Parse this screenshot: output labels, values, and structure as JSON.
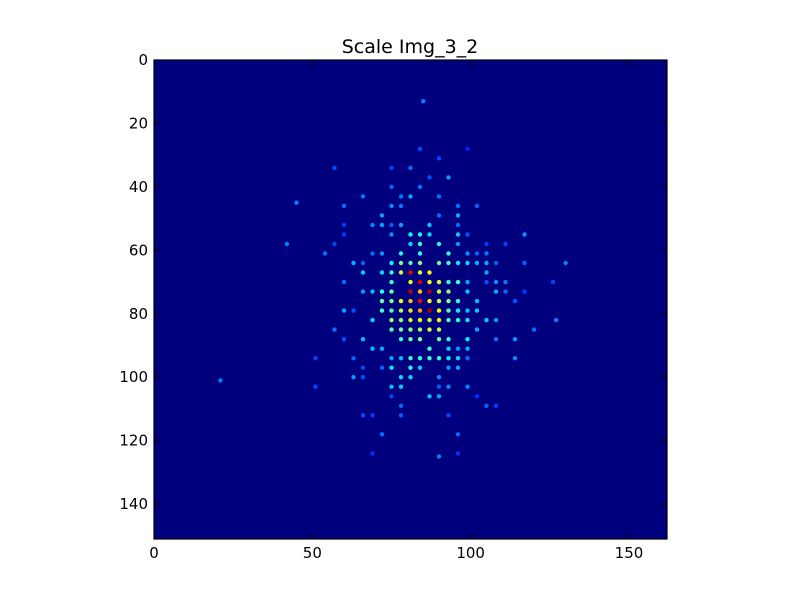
{
  "chart_data": {
    "type": "heatmap",
    "title": "Scale Img_3_2",
    "xlabel": "",
    "ylabel": "",
    "xlim": [
      0,
      162
    ],
    "ylim": [
      151,
      0
    ],
    "x_ticks": [
      0,
      50,
      100,
      150
    ],
    "y_ticks": [
      0,
      20,
      40,
      60,
      80,
      100,
      120,
      140
    ],
    "x_tick_labels": [
      "0",
      "50",
      "100",
      "150"
    ],
    "y_tick_labels": [
      "0",
      "20",
      "40",
      "60",
      "80",
      "100",
      "120",
      "140"
    ],
    "grid": false,
    "colormap": "jet",
    "background_color": "#00007f",
    "axes_edge_color": "#000000",
    "lattice_step": 3,
    "distribution": {
      "center_x": 84,
      "center_y": 76,
      "core_x_range": [
        60,
        110
      ],
      "core_y_range": [
        40,
        110
      ],
      "peak_cells": [
        [
          81,
          67
        ],
        [
          84,
          70
        ],
        [
          87,
          73
        ],
        [
          81,
          73
        ],
        [
          84,
          76
        ],
        [
          87,
          79
        ],
        [
          84,
          81
        ]
      ]
    },
    "outlier_points": [
      {
        "x": 85,
        "y": 13
      },
      {
        "x": 21,
        "y": 101
      },
      {
        "x": 42,
        "y": 58
      },
      {
        "x": 45,
        "y": 45
      },
      {
        "x": 130,
        "y": 64
      },
      {
        "x": 127,
        "y": 82
      },
      {
        "x": 90,
        "y": 125
      }
    ]
  }
}
